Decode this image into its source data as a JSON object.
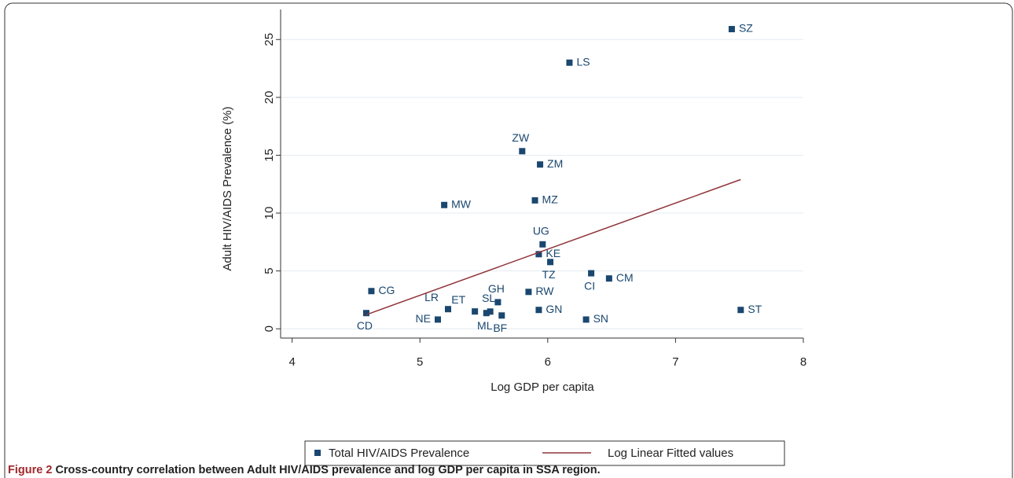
{
  "chart_data": {
    "type": "scatter",
    "xlabel": "Log GDP per capita",
    "ylabel": "Adult HIV/AIDS Prevalence (%)",
    "xlim": [
      3.91,
      8.0
    ],
    "xticks": [
      4,
      5,
      6,
      7,
      8
    ],
    "ylim": [
      -0.8,
      27.6
    ],
    "yticks": [
      0,
      5,
      10,
      15,
      20,
      25
    ],
    "grid": true,
    "series": [
      {
        "name": "Total HIV/AIDS Prevalence",
        "color": "#1a476f",
        "labels": [
          "SZ",
          "LS",
          "ZW",
          "ZM",
          "MW",
          "MZ",
          "UG",
          "KE",
          "TZ",
          "CI",
          "CM",
          "CG",
          "RW",
          "GH",
          "LR",
          "ET",
          "SL",
          "ML",
          "BF",
          "GN",
          "SN",
          "ST",
          "NE",
          "CD"
        ],
        "x": [
          7.44,
          6.17,
          5.8,
          5.94,
          5.19,
          5.9,
          5.96,
          5.93,
          6.02,
          6.34,
          6.48,
          4.62,
          5.85,
          5.61,
          5.22,
          5.43,
          5.55,
          5.52,
          5.64,
          5.93,
          6.3,
          7.51,
          5.14,
          4.58
        ],
        "values": [
          25.9,
          23.0,
          15.35,
          14.2,
          10.7,
          11.1,
          7.3,
          6.45,
          5.77,
          4.8,
          4.35,
          3.26,
          3.19,
          2.3,
          1.7,
          1.5,
          1.49,
          1.36,
          1.15,
          1.63,
          0.8,
          1.63,
          0.8,
          1.36
        ]
      },
      {
        "name": "Log Linear Fitted values",
        "color": "#90353b",
        "type": "line",
        "x": [
          4.58,
          7.51
        ],
        "values": [
          1.22,
          12.9
        ]
      }
    ]
  },
  "caption": {
    "label": "Figure 2",
    "text": "Cross-country correlation between Adult HIV/AIDS prevalence and log GDP per capita in SSA region."
  }
}
